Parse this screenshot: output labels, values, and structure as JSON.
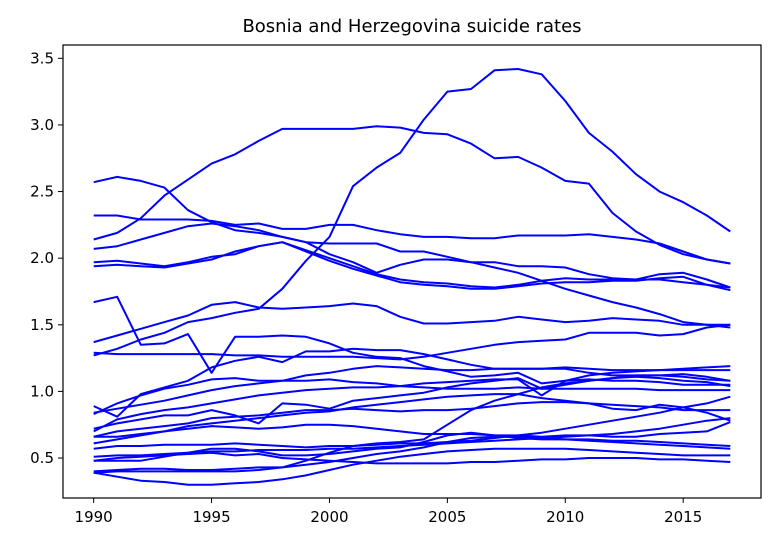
{
  "chart_data": {
    "type": "line",
    "title": "Bosnia and Herzegovina suicide rates",
    "xlabel": "",
    "ylabel": "",
    "xlim": [
      1988.7,
      2018.3
    ],
    "ylim": [
      0.2,
      3.6
    ],
    "x_ticks": [
      1990,
      1995,
      2000,
      2005,
      2010,
      2015
    ],
    "y_ticks": [
      0.5,
      1.0,
      1.5,
      2.0,
      2.5,
      3.0,
      3.5
    ],
    "x_tick_labels": [
      "1990",
      "1995",
      "2000",
      "2005",
      "2010",
      "2015"
    ],
    "y_tick_labels": [
      "0.5",
      "1.0",
      "1.5",
      "2.0",
      "2.5",
      "3.0",
      "3.5"
    ],
    "grid": false,
    "legend": "none",
    "line_color": "#0000ff",
    "x": [
      1990,
      1991,
      1992,
      1993,
      1994,
      1995,
      1996,
      1997,
      1998,
      1999,
      2000,
      2001,
      2002,
      2003,
      2004,
      2005,
      2006,
      2007,
      2008,
      2009,
      2010,
      2011,
      2012,
      2013,
      2014,
      2015,
      2016,
      2017
    ],
    "series": [
      {
        "values": [
          2.14,
          2.19,
          2.3,
          2.47,
          2.59,
          2.71,
          2.78,
          2.88,
          2.97,
          2.97,
          2.97,
          2.97,
          2.99,
          2.98,
          2.94,
          2.93,
          2.86,
          2.75,
          2.76,
          2.68,
          2.58,
          2.56,
          2.34,
          2.2,
          2.1,
          2.03,
          1.99,
          1.96
        ]
      },
      {
        "values": [
          2.57,
          2.61,
          2.58,
          2.53,
          2.36,
          2.27,
          2.21,
          2.19,
          2.16,
          2.12,
          2.11,
          2.11,
          2.11,
          2.05,
          2.05,
          2.01,
          1.97,
          1.93,
          1.89,
          1.83,
          1.77,
          1.72,
          1.67,
          1.63,
          1.58,
          1.52,
          1.5,
          1.5
        ]
      },
      {
        "values": [
          1.67,
          1.71,
          1.35,
          1.36,
          1.43,
          1.14,
          1.41,
          1.41,
          1.42,
          1.41,
          1.36,
          1.29,
          1.26,
          1.25,
          1.19,
          1.15,
          1.11,
          1.12,
          1.14,
          1.06,
          1.08,
          1.09,
          1.08,
          1.08,
          1.07,
          1.05,
          1.05,
          1.05
        ]
      },
      {
        "values": [
          2.32,
          2.32,
          2.29,
          2.29,
          2.29,
          2.28,
          2.25,
          2.26,
          2.22,
          2.22,
          2.25,
          2.25,
          2.21,
          2.18,
          2.16,
          2.16,
          2.15,
          2.15,
          2.17,
          2.17,
          2.17,
          2.18,
          2.16,
          2.14,
          2.11,
          2.05,
          1.99,
          1.96
        ]
      },
      {
        "values": [
          2.07,
          2.09,
          2.14,
          2.19,
          2.24,
          2.26,
          2.24,
          2.21,
          2.16,
          2.12,
          2.03,
          1.97,
          1.89,
          1.95,
          1.99,
          1.99,
          1.97,
          1.97,
          1.94,
          1.94,
          1.93,
          1.88,
          1.85,
          1.84,
          1.84,
          1.82,
          1.8,
          1.78
        ]
      },
      {
        "values": [
          1.97,
          1.98,
          1.96,
          1.94,
          1.97,
          2.01,
          2.03,
          2.09,
          2.12,
          2.06,
          2.0,
          1.94,
          1.88,
          1.84,
          1.82,
          1.81,
          1.79,
          1.78,
          1.8,
          1.83,
          1.85,
          1.84,
          1.84,
          1.84,
          1.88,
          1.89,
          1.84,
          1.78
        ]
      },
      {
        "values": [
          1.94,
          1.95,
          1.94,
          1.93,
          1.96,
          1.99,
          2.05,
          2.09,
          2.12,
          2.05,
          1.98,
          1.92,
          1.87,
          1.82,
          1.8,
          1.79,
          1.77,
          1.77,
          1.79,
          1.81,
          1.82,
          1.82,
          1.83,
          1.83,
          1.85,
          1.86,
          1.8,
          1.76
        ]
      },
      {
        "values": [
          1.37,
          1.42,
          1.47,
          1.52,
          1.57,
          1.65,
          1.67,
          1.63,
          1.62,
          1.63,
          1.64,
          1.66,
          1.64,
          1.56,
          1.51,
          1.51,
          1.52,
          1.53,
          1.56,
          1.54,
          1.52,
          1.53,
          1.55,
          1.54,
          1.53,
          1.5,
          1.5,
          1.48
        ]
      },
      {
        "values": [
          1.27,
          1.32,
          1.39,
          1.44,
          1.52,
          1.55,
          1.59,
          1.62,
          1.77,
          1.98,
          2.16,
          2.54,
          2.68,
          2.79,
          3.04,
          3.25,
          3.27,
          3.41,
          3.42,
          3.38,
          3.18,
          2.94,
          2.8,
          2.63,
          2.5,
          2.42,
          2.32,
          2.2
        ]
      },
      {
        "values": [
          1.29,
          1.28,
          1.28,
          1.28,
          1.28,
          1.28,
          1.27,
          1.27,
          1.26,
          1.26,
          1.26,
          1.26,
          1.25,
          1.24,
          1.26,
          1.29,
          1.32,
          1.35,
          1.37,
          1.38,
          1.39,
          1.44,
          1.44,
          1.44,
          1.42,
          1.43,
          1.48,
          1.5
        ]
      },
      {
        "values": [
          0.89,
          0.81,
          0.98,
          1.03,
          1.08,
          1.18,
          1.23,
          1.26,
          1.22,
          1.3,
          1.3,
          1.32,
          1.31,
          1.31,
          1.28,
          1.24,
          1.2,
          1.17,
          1.17,
          1.17,
          1.18,
          1.17,
          1.16,
          1.16,
          1.16,
          1.16,
          1.16,
          1.16
        ]
      },
      {
        "values": [
          0.83,
          0.91,
          0.97,
          1.02,
          1.05,
          1.09,
          1.1,
          1.08,
          1.08,
          1.12,
          1.14,
          1.17,
          1.19,
          1.18,
          1.17,
          1.16,
          1.16,
          1.17,
          1.17,
          1.17,
          1.17,
          1.14,
          1.12,
          1.12,
          1.12,
          1.13,
          1.11,
          1.08
        ]
      },
      {
        "values": [
          0.84,
          0.87,
          0.9,
          0.93,
          0.97,
          1.01,
          1.04,
          1.06,
          1.08,
          1.08,
          1.09,
          1.07,
          1.06,
          1.04,
          1.03,
          1.02,
          1.02,
          1.02,
          1.03,
          1.02,
          1.02,
          1.02,
          1.02,
          1.02,
          1.01,
          1.01,
          1.01,
          1.01
        ]
      },
      {
        "values": [
          0.7,
          0.79,
          0.83,
          0.86,
          0.88,
          0.91,
          0.94,
          0.97,
          0.99,
          1.01,
          1.02,
          1.03,
          1.03,
          1.04,
          1.06,
          1.07,
          1.08,
          1.09,
          1.09,
          0.97,
          1.08,
          1.12,
          1.14,
          1.15,
          1.16,
          1.17,
          1.18,
          1.19
        ]
      },
      {
        "values": [
          0.72,
          0.76,
          0.79,
          0.82,
          0.82,
          0.86,
          0.82,
          0.76,
          0.91,
          0.9,
          0.87,
          0.93,
          0.95,
          0.97,
          0.99,
          1.03,
          1.06,
          1.08,
          1.1,
          1.02,
          1.05,
          1.08,
          1.1,
          1.12,
          1.12,
          1.11,
          1.09,
          1.08
        ]
      },
      {
        "values": [
          0.66,
          0.7,
          0.72,
          0.74,
          0.76,
          0.8,
          0.81,
          0.82,
          0.84,
          0.86,
          0.86,
          0.87,
          0.86,
          0.85,
          0.86,
          0.86,
          0.87,
          0.89,
          0.91,
          0.92,
          0.92,
          0.91,
          0.9,
          0.89,
          0.88,
          0.86,
          0.86,
          0.86
        ]
      },
      {
        "values": [
          0.66,
          0.66,
          0.68,
          0.7,
          0.74,
          0.76,
          0.78,
          0.8,
          0.82,
          0.84,
          0.85,
          0.88,
          0.9,
          0.92,
          0.94,
          0.96,
          0.97,
          0.98,
          0.98,
          0.95,
          0.93,
          0.91,
          0.87,
          0.86,
          0.9,
          0.88,
          0.84,
          0.78
        ]
      },
      {
        "values": [
          0.61,
          0.64,
          0.67,
          0.7,
          0.72,
          0.74,
          0.73,
          0.72,
          0.73,
          0.75,
          0.75,
          0.74,
          0.72,
          0.7,
          0.68,
          0.68,
          0.68,
          0.67,
          0.67,
          0.66,
          0.67,
          0.67,
          0.66,
          0.66,
          0.68,
          0.69,
          0.7,
          0.77
        ]
      },
      {
        "values": [
          0.57,
          0.59,
          0.59,
          0.6,
          0.6,
          0.6,
          0.61,
          0.6,
          0.59,
          0.58,
          0.59,
          0.59,
          0.6,
          0.61,
          0.61,
          0.62,
          0.63,
          0.65,
          0.67,
          0.69,
          0.72,
          0.75,
          0.78,
          0.81,
          0.84,
          0.88,
          0.91,
          0.96
        ]
      },
      {
        "values": [
          0.51,
          0.52,
          0.52,
          0.53,
          0.54,
          0.55,
          0.55,
          0.56,
          0.56,
          0.56,
          0.57,
          0.57,
          0.58,
          0.59,
          0.6,
          0.61,
          0.62,
          0.63,
          0.64,
          0.65,
          0.66,
          0.67,
          0.68,
          0.7,
          0.72,
          0.75,
          0.78,
          0.8
        ]
      },
      {
        "values": [
          0.48,
          0.48,
          0.48,
          0.51,
          0.54,
          0.57,
          0.57,
          0.55,
          0.52,
          0.52,
          0.53,
          0.55,
          0.57,
          0.58,
          0.62,
          0.67,
          0.69,
          0.67,
          0.65,
          0.64,
          0.64,
          0.64,
          0.63,
          0.63,
          0.62,
          0.61,
          0.6,
          0.59
        ]
      },
      {
        "values": [
          0.4,
          0.41,
          0.42,
          0.42,
          0.41,
          0.41,
          0.42,
          0.43,
          0.43,
          0.45,
          0.47,
          0.5,
          0.53,
          0.55,
          0.58,
          0.62,
          0.65,
          0.66,
          0.66,
          0.65,
          0.64,
          0.63,
          0.62,
          0.61,
          0.6,
          0.59,
          0.58,
          0.57
        ]
      },
      {
        "values": [
          0.39,
          0.4,
          0.4,
          0.4,
          0.4,
          0.4,
          0.4,
          0.41,
          0.43,
          0.48,
          0.54,
          0.59,
          0.61,
          0.62,
          0.64,
          0.75,
          0.86,
          0.93,
          0.98,
          1.03,
          1.06,
          1.08,
          1.1,
          1.11,
          1.1,
          1.08,
          1.07,
          1.04
        ]
      },
      {
        "values": [
          0.39,
          0.36,
          0.33,
          0.32,
          0.3,
          0.3,
          0.31,
          0.32,
          0.34,
          0.37,
          0.41,
          0.45,
          0.48,
          0.51,
          0.53,
          0.55,
          0.56,
          0.57,
          0.57,
          0.57,
          0.57,
          0.56,
          0.55,
          0.54,
          0.53,
          0.52,
          0.52,
          0.52
        ]
      },
      {
        "values": [
          0.48,
          0.5,
          0.51,
          0.52,
          0.53,
          0.54,
          0.52,
          0.53,
          0.5,
          0.49,
          0.48,
          0.47,
          0.46,
          0.46,
          0.46,
          0.46,
          0.47,
          0.47,
          0.48,
          0.49,
          0.49,
          0.5,
          0.5,
          0.5,
          0.49,
          0.49,
          0.48,
          0.47
        ]
      }
    ]
  }
}
